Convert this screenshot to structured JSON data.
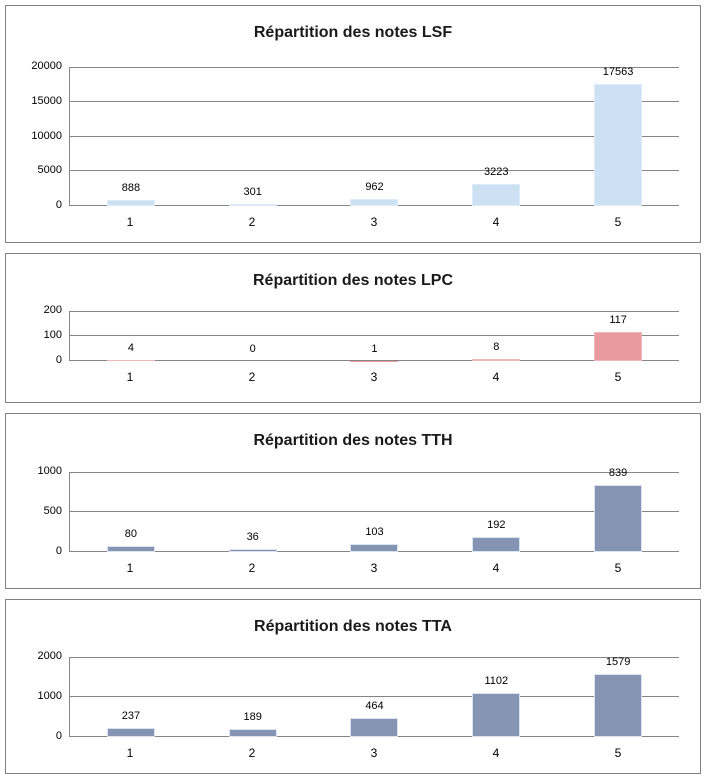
{
  "style": {
    "grid_color": "#868686",
    "panel_border_color": "#808080",
    "title_color": "#1a1a1a",
    "label_color": "#000000"
  },
  "chart_data": [
    {
      "type": "bar",
      "title": "Répartition des notes LSF",
      "categories": [
        "1",
        "2",
        "3",
        "4",
        "5"
      ],
      "values": [
        888,
        301,
        962,
        3223,
        17563
      ],
      "ylim": [
        0,
        20000
      ],
      "yticks": [
        0,
        5000,
        10000,
        15000,
        20000
      ],
      "grid": true,
      "legend": false,
      "data_labels": true,
      "bar_color": "#cde1f4",
      "bar_border_color": "#ddebf8"
    },
    {
      "type": "bar",
      "title": "Répartition des notes LPC",
      "categories": [
        "1",
        "2",
        "3",
        "4",
        "5"
      ],
      "values": [
        4,
        0,
        1,
        8,
        117
      ],
      "ylim": [
        0,
        200
      ],
      "yticks": [
        0,
        100,
        200
      ],
      "grid": true,
      "legend": false,
      "data_labels": true,
      "bar_color": "#e99a9f",
      "bar_border_color": "#f0b6ba"
    },
    {
      "type": "bar",
      "title": "Répartition des notes TTH",
      "categories": [
        "1",
        "2",
        "3",
        "4",
        "5"
      ],
      "values": [
        80,
        36,
        103,
        192,
        839
      ],
      "ylim": [
        0,
        1000
      ],
      "yticks": [
        0,
        500,
        1000
      ],
      "grid": true,
      "legend": false,
      "data_labels": true,
      "bar_color": "#8494b2",
      "bar_border_color": "#dbe3ef"
    },
    {
      "type": "bar",
      "title": "Répartition des notes TTA",
      "categories": [
        "1",
        "2",
        "3",
        "4",
        "5"
      ],
      "values": [
        237,
        189,
        464,
        1102,
        1579
      ],
      "ylim": [
        0,
        2000
      ],
      "yticks": [
        0,
        1000,
        2000
      ],
      "grid": true,
      "legend": false,
      "data_labels": true,
      "bar_color": "#8494b2",
      "bar_border_color": "#dbe3ef"
    }
  ]
}
